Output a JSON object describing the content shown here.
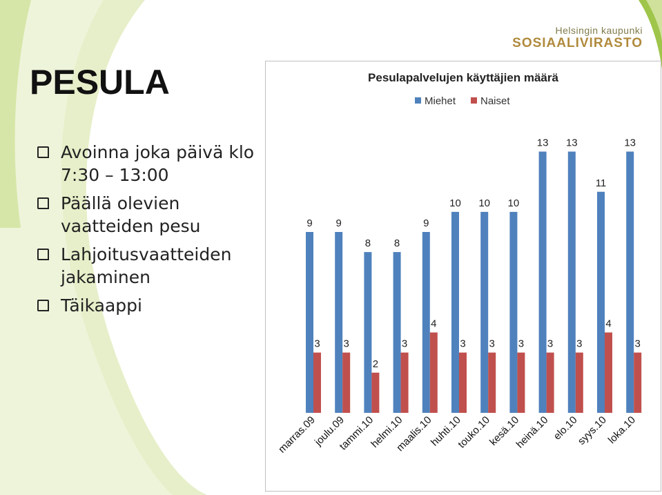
{
  "slide": {
    "title": "PESULA",
    "bullets": [
      "Avoinna joka päivä klo 7:30 – 13:00",
      "Päällä olevien vaatteiden pesu",
      "Lahjoitusvaatteiden jakaminen",
      "Täikaappi"
    ]
  },
  "logo": {
    "line1": "Helsingin kaupunki",
    "line2": "SOSIAALIVIRASTO"
  },
  "colors": {
    "miehet": "#4f81bd",
    "naiset": "#c0504d",
    "swoosh_light": "#e3edc5",
    "swoosh_dark": "#a6c94f"
  },
  "chart_data": {
    "type": "bar",
    "title": "Pesulapalvelujen käyttäjien määrä",
    "legend_position": "top",
    "categories": [
      "marras.09",
      "joulu.09",
      "tammi.10",
      "helmi.10",
      "maalis.10",
      "huhti.10",
      "touko.10",
      "kesä.10",
      "heinä.10",
      "elo.10",
      "syys.10",
      "loka.10"
    ],
    "series": [
      {
        "name": "Miehet",
        "values": [
          9,
          9,
          8,
          8,
          9,
          10,
          10,
          10,
          13,
          13,
          11,
          13
        ]
      },
      {
        "name": "Naiset",
        "values": [
          3,
          3,
          2,
          3,
          4,
          3,
          3,
          3,
          3,
          3,
          4,
          3
        ]
      }
    ],
    "ylim": [
      0,
      13.5
    ],
    "grid": false,
    "data_labels": true
  }
}
